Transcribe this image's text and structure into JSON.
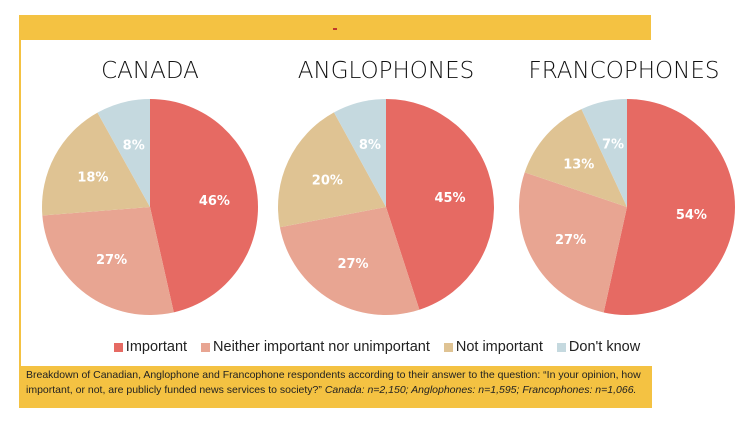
{
  "chart_data": [
    {
      "type": "pie",
      "title": "CANADA",
      "categories": [
        "Important",
        "Neither important nor unimportant",
        "Not important",
        "Don't know"
      ],
      "values": [
        46,
        27,
        18,
        8
      ],
      "labels": [
        "46%",
        "27%",
        "18%",
        "8%"
      ]
    },
    {
      "type": "pie",
      "title": "ANGLOPHONES",
      "categories": [
        "Important",
        "Neither important nor unimportant",
        "Not important",
        "Don't know"
      ],
      "values": [
        45,
        27,
        20,
        8
      ],
      "labels": [
        "45%",
        "27%",
        "20%",
        "8%"
      ]
    },
    {
      "type": "pie",
      "title": "FRANCOPHONES",
      "categories": [
        "Important",
        "Neither important nor unimportant",
        "Not important",
        "Don't know"
      ],
      "values": [
        54,
        27,
        13,
        7
      ],
      "labels": [
        "54%",
        "27%",
        "13%",
        "7%"
      ]
    }
  ],
  "legend": [
    {
      "label": "Important",
      "color": "#e66a63"
    },
    {
      "label": "Neither important nor unimportant",
      "color": "#e8a592"
    },
    {
      "label": "Not important",
      "color": "#dfc393"
    },
    {
      "label": "Don't know",
      "color": "#c5d9df"
    }
  ],
  "caption": {
    "text": "Breakdown of Canadian, Anglophone and Francophone respondents according to their answer to the question: “In your opinion, how important, or not, are publicly funded news services to society?”",
    "italic": " Canada: n=2,150; Anglophones: n=1,595; Francophones: n=1,066."
  }
}
